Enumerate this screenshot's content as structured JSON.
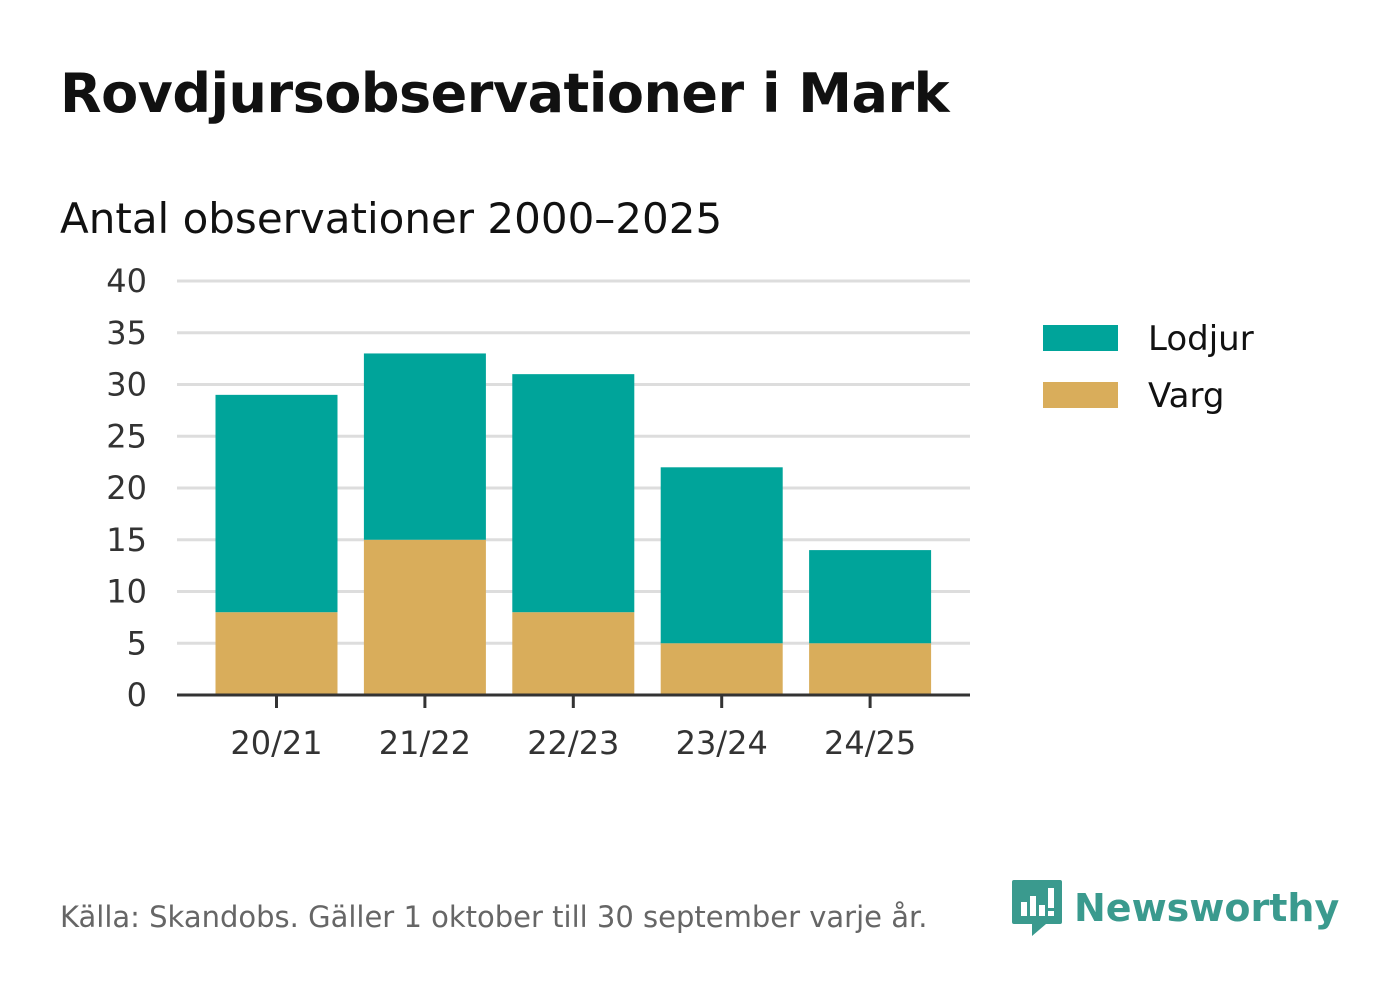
{
  "title": "Rovdjursobservationer i Mark",
  "subtitle": "Antal observationer 2000–2025",
  "source": "Källa: Skandobs. Gäller 1 oktober till 30 september varje år.",
  "brand": {
    "name": "Newsworthy",
    "icon": "newsworthy-logo-icon",
    "color": "#3a9a8e"
  },
  "chart_data": {
    "type": "bar",
    "stacked": true,
    "categories": [
      "20/21",
      "21/22",
      "22/23",
      "23/24",
      "24/25"
    ],
    "series": [
      {
        "name": "Varg",
        "color": "#d9ad5b",
        "values": [
          8,
          15,
          8,
          5,
          5
        ]
      },
      {
        "name": "Lodjur",
        "color": "#00a49a",
        "values": [
          21,
          18,
          23,
          17,
          9
        ]
      }
    ],
    "yticks": [
      "0",
      "5",
      "10",
      "15",
      "20",
      "25",
      "30",
      "35",
      "40"
    ],
    "ylim": [
      0,
      40
    ],
    "grid": true,
    "legend_position": "right",
    "legend_order": [
      "Lodjur",
      "Varg"
    ]
  }
}
